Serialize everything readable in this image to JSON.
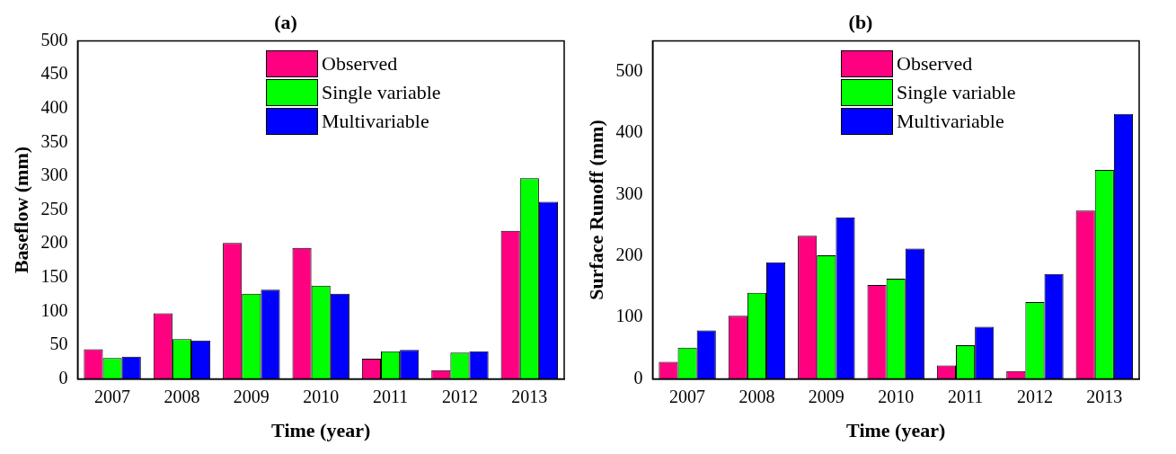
{
  "chart_data": [
    {
      "type": "bar",
      "title": "(a)",
      "xlabel": "Time (year)",
      "ylabel": "Baseflow (mm)",
      "categories": [
        "2007",
        "2008",
        "2009",
        "2010",
        "2011",
        "2012",
        "2013"
      ],
      "series": [
        {
          "name": "Observed",
          "color": "#ff0080",
          "values": [
            44,
            97,
            201,
            194,
            30,
            13,
            219
          ]
        },
        {
          "name": "Single variable",
          "color": "#00ff00",
          "values": [
            31,
            59,
            126,
            138,
            41,
            39,
            297
          ]
        },
        {
          "name": "Multivariable",
          "color": "#0000ff",
          "values": [
            33,
            57,
            132,
            126,
            43,
            41,
            262
          ]
        }
      ],
      "ylim": [
        0,
        500
      ],
      "yticks": [
        0,
        50,
        100,
        150,
        200,
        250,
        300,
        350,
        400,
        450,
        500
      ],
      "grid": false,
      "legend": "top"
    },
    {
      "type": "bar",
      "title": "(b)",
      "xlabel": "Time (year)",
      "ylabel": "Surface Runoff (mm)",
      "categories": [
        "2007",
        "2008",
        "2009",
        "2010",
        "2011",
        "2012",
        "2013"
      ],
      "series": [
        {
          "name": "Observed",
          "color": "#ff0080",
          "values": [
            28,
            103,
            233,
            153,
            22,
            13,
            274
          ]
        },
        {
          "name": "Single variable",
          "color": "#00ff00",
          "values": [
            51,
            140,
            201,
            163,
            55,
            125,
            340
          ]
        },
        {
          "name": "Multivariable",
          "color": "#0000ff",
          "values": [
            79,
            190,
            263,
            212,
            85,
            171,
            431
          ]
        }
      ],
      "ylim": [
        0,
        550
      ],
      "yticks": [
        0,
        100,
        200,
        300,
        400,
        500
      ],
      "grid": false,
      "legend": "top"
    }
  ]
}
